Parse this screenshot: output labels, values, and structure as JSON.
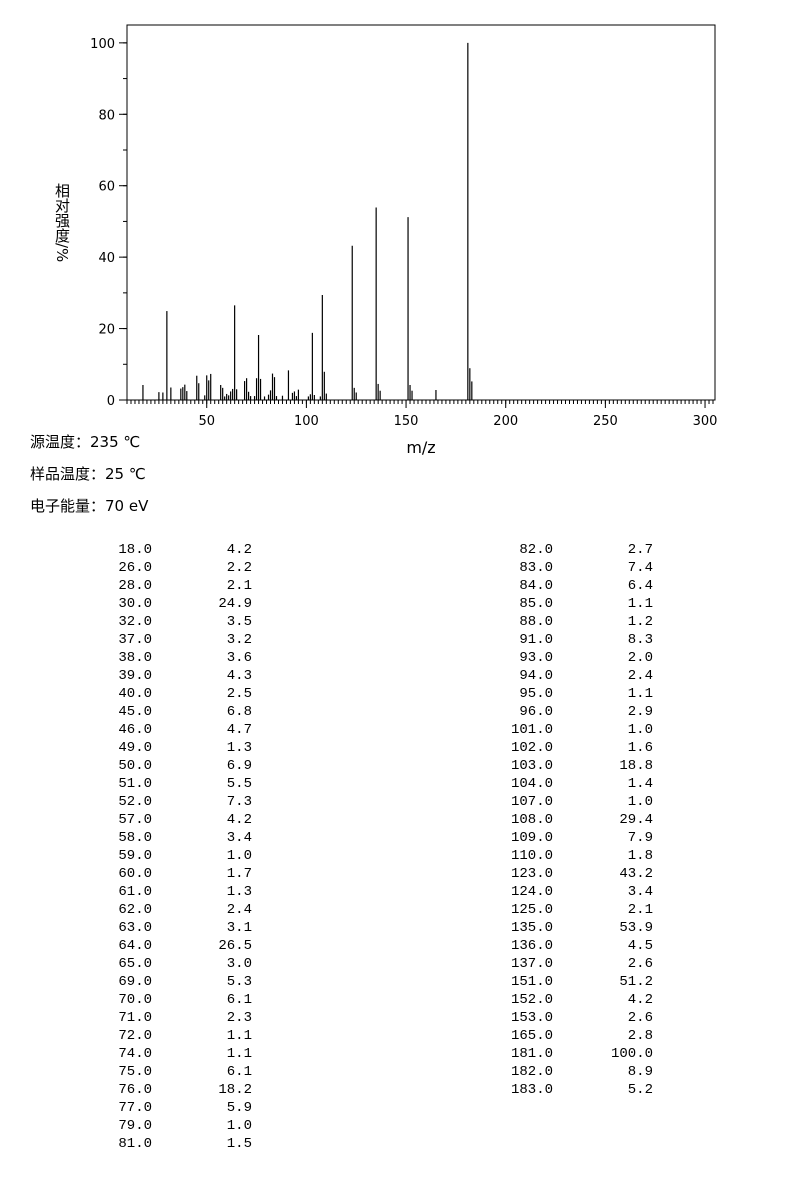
{
  "chart_data": {
    "type": "stick",
    "x_label": "m/z",
    "y_label": "相对强度/%",
    "x": [
      18,
      26,
      28,
      30,
      32,
      37,
      38,
      39,
      40,
      45,
      46,
      49,
      50,
      51,
      52,
      57,
      58,
      59,
      60,
      61,
      62,
      63,
      64,
      65,
      69,
      70,
      71,
      72,
      74,
      75,
      76,
      77,
      79,
      81,
      82,
      83,
      84,
      85,
      88,
      91,
      93,
      94,
      95,
      96,
      101,
      102,
      103,
      104,
      107,
      108,
      109,
      110,
      123,
      124,
      125,
      135,
      136,
      137,
      151,
      152,
      153,
      165,
      181,
      182,
      183
    ],
    "x_labels": [
      "18.0",
      "26.0",
      "28.0",
      "30.0",
      "32.0",
      "37.0",
      "38.0",
      "39.0",
      "40.0",
      "45.0",
      "46.0",
      "49.0",
      "50.0",
      "51.0",
      "52.0",
      "57.0",
      "58.0",
      "59.0",
      "60.0",
      "61.0",
      "62.0",
      "63.0",
      "64.0",
      "65.0",
      "69.0",
      "70.0",
      "71.0",
      "72.0",
      "74.0",
      "75.0",
      "76.0",
      "77.0",
      "79.0",
      "81.0",
      "82.0",
      "83.0",
      "84.0",
      "85.0",
      "88.0",
      "91.0",
      "93.0",
      "94.0",
      "95.0",
      "96.0",
      "101.0",
      "102.0",
      "103.0",
      "104.0",
      "107.0",
      "108.0",
      "109.0",
      "110.0",
      "123.0",
      "124.0",
      "125.0",
      "135.0",
      "136.0",
      "137.0",
      "151.0",
      "152.0",
      "153.0",
      "165.0",
      "181.0",
      "182.0",
      "183.0"
    ],
    "values": [
      4.2,
      2.2,
      2.1,
      24.9,
      3.5,
      3.2,
      3.6,
      4.3,
      2.5,
      6.8,
      4.7,
      1.3,
      6.9,
      5.5,
      7.3,
      4.2,
      3.4,
      1.0,
      1.7,
      1.3,
      2.4,
      3.1,
      26.5,
      3.0,
      5.3,
      6.1,
      2.3,
      1.1,
      1.1,
      6.1,
      18.2,
      5.9,
      1.0,
      1.5,
      2.7,
      7.4,
      6.4,
      1.1,
      1.2,
      8.3,
      2.0,
      2.4,
      1.1,
      2.9,
      1.0,
      1.6,
      18.8,
      1.4,
      1.0,
      29.4,
      7.9,
      1.8,
      43.2,
      3.4,
      2.1,
      53.9,
      4.5,
      2.6,
      51.2,
      4.2,
      2.6,
      2.8,
      100.0,
      8.9,
      5.2
    ],
    "value_labels": [
      "4.2",
      "2.2",
      "2.1",
      "24.9",
      "3.5",
      "3.2",
      "3.6",
      "4.3",
      "2.5",
      "6.8",
      "4.7",
      "1.3",
      "6.9",
      "5.5",
      "7.3",
      "4.2",
      "3.4",
      "1.0",
      "1.7",
      "1.3",
      "2.4",
      "3.1",
      "26.5",
      "3.0",
      "5.3",
      "6.1",
      "2.3",
      "1.1",
      "1.1",
      "6.1",
      "18.2",
      "5.9",
      "1.0",
      "1.5",
      "2.7",
      "7.4",
      "6.4",
      "1.1",
      "1.2",
      "8.3",
      "2.0",
      "2.4",
      "1.1",
      "2.9",
      "1.0",
      "1.6",
      "18.8",
      "1.4",
      "1.0",
      "29.4",
      "7.9",
      "1.8",
      "43.2",
      "3.4",
      "2.1",
      "53.9",
      "4.5",
      "2.6",
      "51.2",
      "4.2",
      "2.6",
      "2.8",
      "100.0",
      "8.9",
      "5.2"
    ],
    "color": "#000000",
    "xlim": [
      10,
      305
    ],
    "ylim": [
      0,
      105
    ],
    "xticks": [
      50,
      100,
      150,
      200,
      250,
      300
    ],
    "yticks": [
      0,
      20,
      40,
      60,
      80,
      100
    ],
    "conditions": [
      "源温度：235 ℃",
      "样品温度：25 ℃",
      "电子能量：70 eV"
    ]
  }
}
